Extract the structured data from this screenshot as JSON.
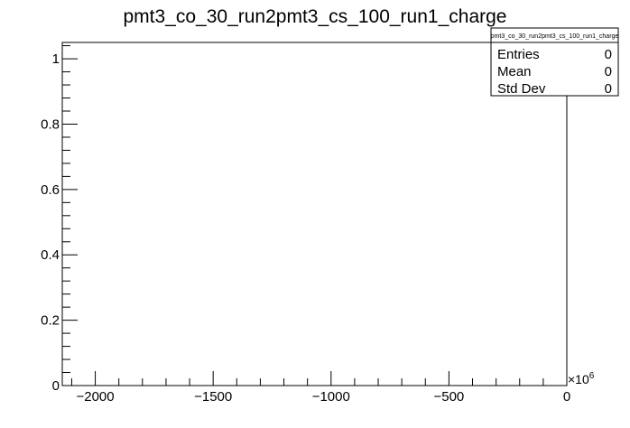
{
  "chart_data": {
    "type": "bar",
    "title": "pmt3_co_30_run2pmt3_cs_100_run1_charge",
    "xlabel": "",
    "ylabel": "",
    "xlim": [
      -2140,
      0
    ],
    "ylim": [
      0,
      1.05
    ],
    "x_ticks": [
      -2000,
      -1500,
      -1000,
      -500,
      0
    ],
    "x_tick_labels": [
      "−2000",
      "−1500",
      "−1000",
      "−500",
      "0"
    ],
    "x_minor_step": 100,
    "x_exponent_label": "×10",
    "x_exponent_power": "6",
    "y_ticks": [
      0,
      0.2,
      0.4,
      0.6,
      0.8,
      1
    ],
    "y_tick_labels": [
      "0",
      "0.2",
      "0.4",
      "0.6",
      "0.8",
      "1"
    ],
    "y_minor_step": 0.04,
    "grid": false,
    "values": [],
    "stats_box": {
      "title": "pmt3_co_30_run2pmt3_cs_100_run1_charge",
      "rows": [
        {
          "label": "Entries",
          "value": "0"
        },
        {
          "label": "Mean",
          "value": "0"
        },
        {
          "label": "Std Dev",
          "value": "0"
        }
      ],
      "placement": "top-right"
    }
  }
}
